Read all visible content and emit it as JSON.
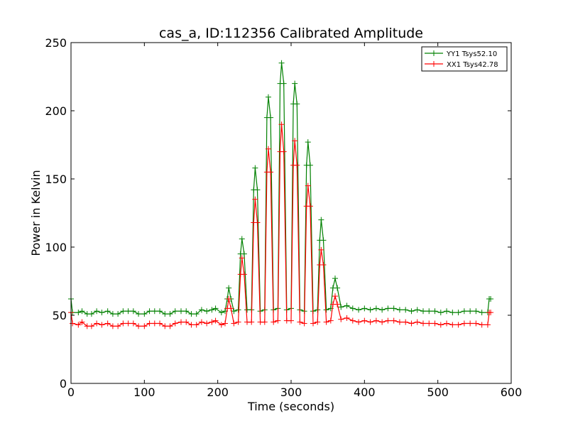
{
  "chart_data": {
    "type": "line",
    "title": "cas_a, ID:112356 Calibrated Amplitude",
    "xlabel": "Time (seconds)",
    "ylabel": "Power in Kelvin",
    "xlim": [
      0,
      600
    ],
    "ylim": [
      0,
      250
    ],
    "xticks": [
      "0",
      "100",
      "200",
      "300",
      "400",
      "500",
      "600"
    ],
    "yticks": [
      "0",
      "50",
      "100",
      "150",
      "200",
      "250"
    ],
    "grid": false,
    "legend_position": "top-right",
    "series": [
      {
        "name": "YY1 Tsys52.10",
        "color": "#008000",
        "marker": "plus",
        "x": [
          0,
          2,
          10,
          15,
          22,
          28,
          35,
          42,
          50,
          57,
          64,
          71,
          78,
          85,
          92,
          100,
          107,
          114,
          121,
          128,
          135,
          142,
          150,
          157,
          164,
          171,
          178,
          185,
          192,
          197,
          205,
          210,
          213,
          215,
          218,
          222,
          228,
          231,
          233,
          236,
          240,
          246,
          249,
          251,
          254,
          258,
          264,
          267,
          269,
          272,
          276,
          282,
          285,
          287,
          290,
          294,
          300,
          303,
          305,
          308,
          312,
          318,
          321,
          323,
          326,
          330,
          336,
          339,
          341,
          344,
          348,
          354,
          357,
          360,
          363,
          368,
          376,
          384,
          392,
          400,
          408,
          416,
          424,
          432,
          440,
          448,
          456,
          464,
          472,
          480,
          488,
          496,
          504,
          512,
          520,
          528,
          536,
          544,
          552,
          560,
          568,
          570,
          572
        ],
        "values": [
          62,
          52,
          52,
          53,
          51,
          51,
          53,
          52,
          53,
          51,
          51,
          53,
          53,
          53,
          51,
          51,
          53,
          53,
          53,
          51,
          51,
          53,
          53,
          53,
          51,
          51,
          54,
          53,
          54,
          55,
          52,
          53,
          62,
          70,
          62,
          53,
          54,
          95,
          106,
          95,
          54,
          54,
          142,
          158,
          142,
          53,
          54,
          195,
          210,
          195,
          54,
          55,
          220,
          235,
          220,
          54,
          55,
          205,
          220,
          205,
          54,
          53,
          160,
          177,
          160,
          53,
          54,
          105,
          120,
          105,
          54,
          55,
          70,
          77,
          70,
          56,
          57,
          55,
          54,
          55,
          54,
          55,
          54,
          55,
          55,
          54,
          54,
          53,
          54,
          53,
          53,
          53,
          52,
          53,
          52,
          52,
          53,
          53,
          53,
          52,
          52,
          62,
          62
        ]
      },
      {
        "name": "XX1 Tsys42.78",
        "color": "#ff0000",
        "marker": "plus",
        "x": [
          0,
          2,
          10,
          15,
          22,
          28,
          35,
          42,
          50,
          57,
          64,
          71,
          78,
          85,
          92,
          100,
          107,
          114,
          121,
          128,
          135,
          142,
          150,
          157,
          164,
          171,
          178,
          185,
          192,
          197,
          205,
          210,
          213,
          215,
          218,
          222,
          228,
          231,
          233,
          236,
          240,
          246,
          249,
          251,
          254,
          258,
          264,
          267,
          269,
          272,
          276,
          282,
          285,
          287,
          290,
          294,
          300,
          303,
          305,
          308,
          312,
          318,
          321,
          323,
          326,
          330,
          336,
          339,
          341,
          344,
          348,
          354,
          357,
          360,
          363,
          368,
          376,
          384,
          392,
          400,
          408,
          416,
          424,
          432,
          440,
          448,
          456,
          464,
          472,
          480,
          488,
          496,
          504,
          512,
          520,
          528,
          536,
          544,
          552,
          560,
          568,
          570,
          572
        ],
        "values": [
          52,
          44,
          43,
          45,
          42,
          42,
          44,
          43,
          44,
          42,
          42,
          44,
          44,
          44,
          42,
          42,
          44,
          44,
          44,
          42,
          42,
          44,
          45,
          45,
          43,
          43,
          45,
          44,
          45,
          46,
          43,
          44,
          55,
          62,
          55,
          44,
          45,
          80,
          92,
          80,
          45,
          45,
          118,
          135,
          118,
          45,
          45,
          155,
          172,
          155,
          45,
          46,
          170,
          190,
          170,
          46,
          46,
          160,
          178,
          160,
          45,
          44,
          130,
          145,
          130,
          44,
          45,
          87,
          98,
          87,
          45,
          46,
          58,
          64,
          58,
          47,
          48,
          46,
          45,
          46,
          45,
          46,
          45,
          46,
          46,
          45,
          45,
          44,
          45,
          44,
          44,
          44,
          43,
          44,
          43,
          43,
          44,
          44,
          44,
          43,
          43,
          52,
          52
        ]
      }
    ]
  }
}
